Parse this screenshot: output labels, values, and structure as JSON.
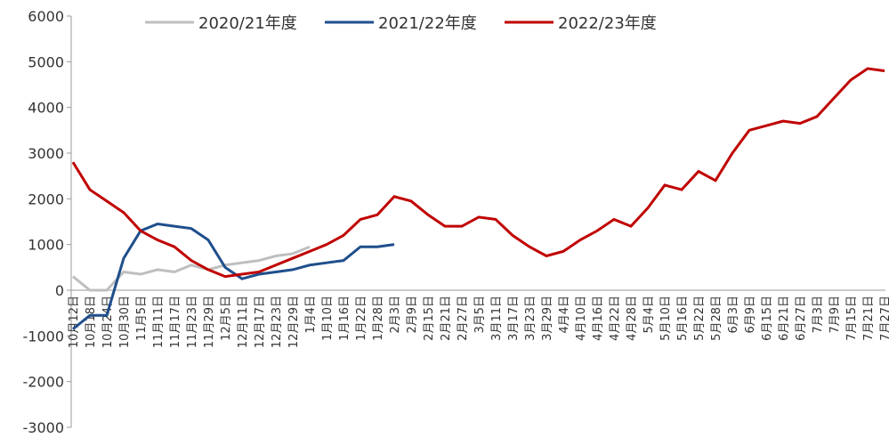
{
  "chart_data": {
    "type": "line",
    "categories": [
      "10月12日",
      "10月18日",
      "10月24日",
      "10月30日",
      "11月5日",
      "11月11日",
      "11月17日",
      "11月23日",
      "11月29日",
      "12月5日",
      "12月11日",
      "12月17日",
      "12月23日",
      "12月29日",
      "1月4日",
      "1月10日",
      "1月16日",
      "1月22日",
      "1月28日",
      "2月3日",
      "2月9日",
      "2月15日",
      "2月21日",
      "2月27日",
      "3月5日",
      "3月11日",
      "3月17日",
      "3月23日",
      "3月29日",
      "4月4日",
      "4月10日",
      "4月16日",
      "4月22日",
      "4月28日",
      "5月4日",
      "5月10日",
      "5月16日",
      "5月22日",
      "5月28日",
      "6月3日",
      "6月9日",
      "6月15日",
      "6月21日",
      "6月27日",
      "7月3日",
      "7月9日",
      "7月15日",
      "7月21日",
      "7月27日"
    ],
    "series": [
      {
        "name": "2020/21年度",
        "color": "#bfbfbf",
        "values": [
          300,
          0,
          0,
          400,
          350,
          450,
          400,
          550,
          450,
          550,
          600,
          650,
          750,
          800,
          950,
          null,
          null,
          null,
          null,
          null,
          null,
          null,
          null,
          null,
          null,
          null,
          null,
          null,
          null,
          null,
          null,
          null,
          null,
          null,
          null,
          null,
          null,
          null,
          null,
          null,
          null,
          null,
          null,
          null,
          null,
          null,
          null,
          null,
          null
        ]
      },
      {
        "name": "2021/22年度",
        "color": "#1f4e8c",
        "values": [
          -850,
          -550,
          -550,
          700,
          1300,
          1450,
          1400,
          1350,
          1100,
          500,
          250,
          350,
          400,
          450,
          550,
          600,
          650,
          950,
          950,
          1000,
          null,
          null,
          null,
          null,
          null,
          null,
          null,
          null,
          null,
          null,
          null,
          null,
          null,
          null,
          null,
          null,
          null,
          null,
          null,
          null,
          null,
          null,
          null,
          null,
          null,
          null,
          null,
          null,
          null
        ]
      },
      {
        "name": "2022/23年度",
        "color": "#c00000",
        "values": [
          2800,
          2200,
          1950,
          1700,
          1300,
          1100,
          950,
          650,
          450,
          300,
          350,
          400,
          550,
          700,
          850,
          1000,
          1200,
          1550,
          1650,
          2050,
          1950,
          1650,
          1400,
          1400,
          1600,
          1550,
          1200,
          950,
          750,
          850,
          1100,
          1300,
          1550,
          1400,
          1800,
          2300,
          2200,
          2600,
          2400,
          3000,
          3500,
          3600,
          3700,
          3650,
          3800,
          4200,
          4600,
          4850,
          4800
        ]
      }
    ],
    "ylim": [
      -3000,
      6000
    ],
    "yticks": [
      -3000,
      -2000,
      -1000,
      0,
      1000,
      2000,
      3000,
      4000,
      5000,
      6000
    ]
  }
}
